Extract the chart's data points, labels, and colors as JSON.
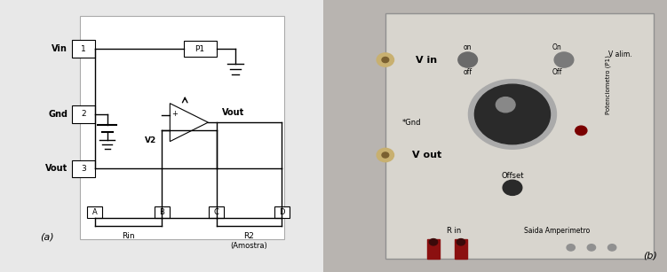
{
  "fig_width": 7.51,
  "fig_height": 3.07,
  "bg_color": "#e8e8e8",
  "left_bg": "#ffffff",
  "right_bg": "#c0bdb8",
  "label_a": "(a)",
  "label_b": "(b)",
  "connector_labels": [
    "A",
    "B",
    "C",
    "D"
  ],
  "port_labels": [
    "Vin",
    "Gnd",
    "Vout"
  ],
  "port_numbers": [
    "1",
    "2",
    "3"
  ],
  "p1_label": "P1",
  "v2_label": "V2",
  "vout_label": "Vout",
  "rin_label": "Rin",
  "r2_label": "R2",
  "amostra_label": "(Amostra)",
  "photo_labels": [
    "V in",
    "on",
    "off",
    "On",
    "Off",
    "V alim.",
    "Potenciometro (P1)",
    "*Gnd",
    "V out",
    "Offset",
    "R in",
    "Saida Amperimetro"
  ]
}
